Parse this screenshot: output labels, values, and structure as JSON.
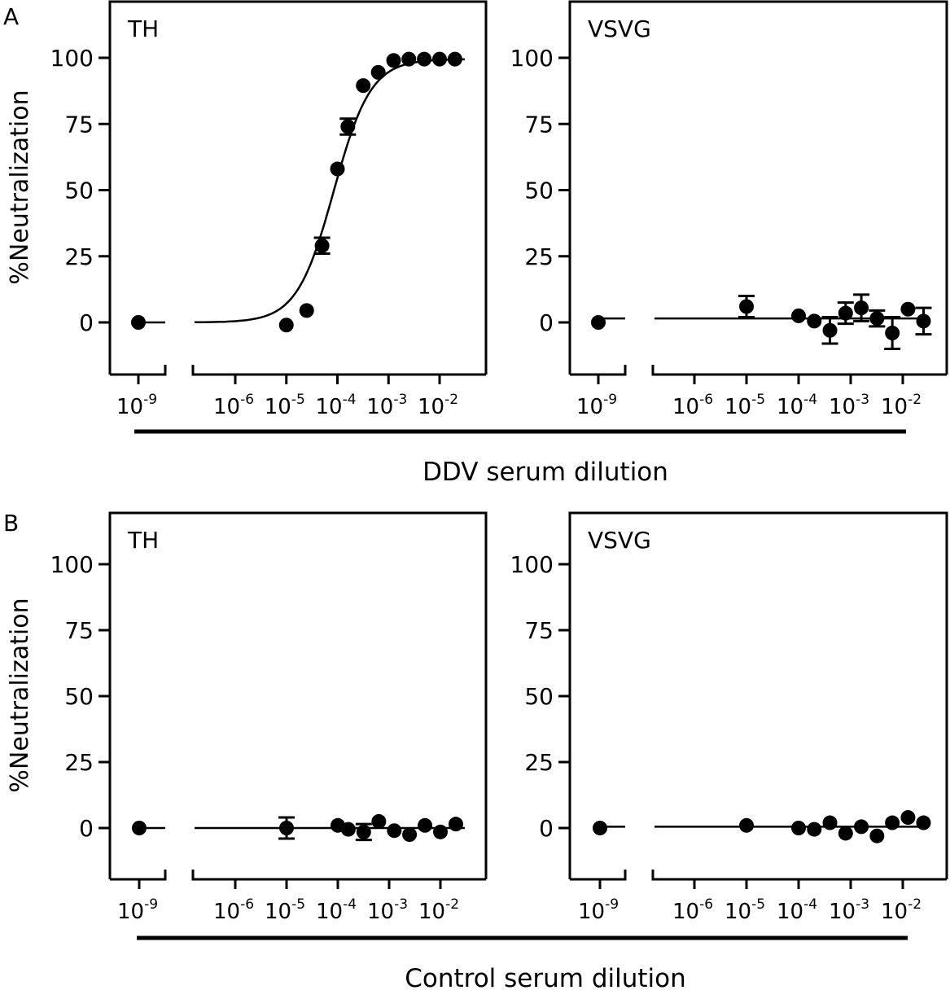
{
  "figure": {
    "section_letters": [
      "A",
      "B"
    ],
    "bottom_labels": [
      "DDV serum dilution",
      "Control serum dilution"
    ]
  },
  "chart_data": [
    {
      "type": "scatter",
      "panel": "A",
      "title": "TH",
      "ylabel": "%Neutralization",
      "xlabel": "DDV serum dilution",
      "x_scale": "log10",
      "y_ticks": [
        0,
        25,
        50,
        75,
        100
      ],
      "ylim": [
        -20,
        120
      ],
      "x_ticks": [
        {
          "base": "10",
          "exp": "-9"
        },
        {
          "base": "10",
          "exp": "-6"
        },
        {
          "base": "10",
          "exp": "-5"
        },
        {
          "base": "10",
          "exp": "-4"
        },
        {
          "base": "10",
          "exp": "-3"
        },
        {
          "base": "10",
          "exp": "-2"
        }
      ],
      "control_point": {
        "x": 1e-09,
        "y": 0,
        "err": 0
      },
      "points": [
        {
          "x": 1e-05,
          "y": -1,
          "err": 0
        },
        {
          "x": 2.5e-05,
          "y": 4.5,
          "err": 0
        },
        {
          "x": 5e-05,
          "y": 29,
          "err": 3
        },
        {
          "x": 0.0001,
          "y": 58,
          "err": 0
        },
        {
          "x": 0.00016,
          "y": 74,
          "err": 3
        },
        {
          "x": 0.00032,
          "y": 89.5,
          "err": 0
        },
        {
          "x": 0.00063,
          "y": 94.5,
          "err": 0
        },
        {
          "x": 0.00126,
          "y": 99,
          "err": 0
        },
        {
          "x": 0.0025,
          "y": 99.5,
          "err": 0
        },
        {
          "x": 0.005,
          "y": 99.5,
          "err": 0
        },
        {
          "x": 0.01,
          "y": 99.5,
          "err": 0
        },
        {
          "x": 0.02,
          "y": 99.5,
          "err": 0
        }
      ],
      "fit": {
        "type": "sigmoid",
        "bottom": 0,
        "top": 99.5,
        "ec50": 8.5e-05,
        "hill": 1.2
      }
    },
    {
      "type": "scatter",
      "panel": "A",
      "title": "VSVG",
      "ylabel": "",
      "xlabel": "DDV serum dilution",
      "x_scale": "log10",
      "y_ticks": [
        0,
        25,
        50,
        75,
        100
      ],
      "ylim": [
        -20,
        120
      ],
      "x_ticks": [
        {
          "base": "10",
          "exp": "-9"
        },
        {
          "base": "10",
          "exp": "-6"
        },
        {
          "base": "10",
          "exp": "-5"
        },
        {
          "base": "10",
          "exp": "-4"
        },
        {
          "base": "10",
          "exp": "-3"
        },
        {
          "base": "10",
          "exp": "-2"
        }
      ],
      "control_point": {
        "x": 1e-09,
        "y": 0,
        "err": 0
      },
      "points": [
        {
          "x": 1e-05,
          "y": 6,
          "err": 4
        },
        {
          "x": 0.0001,
          "y": 2.5,
          "err": 0
        },
        {
          "x": 0.0002,
          "y": 0.5,
          "err": 0
        },
        {
          "x": 0.0004,
          "y": -3,
          "err": 5
        },
        {
          "x": 0.0008,
          "y": 3.5,
          "err": 4
        },
        {
          "x": 0.0016,
          "y": 5.5,
          "err": 5
        },
        {
          "x": 0.0032,
          "y": 1.5,
          "err": 3
        },
        {
          "x": 0.0063,
          "y": -4,
          "err": 6
        },
        {
          "x": 0.0126,
          "y": 5,
          "err": 0
        },
        {
          "x": 0.025,
          "y": 0.5,
          "err": 5
        }
      ],
      "fit": {
        "type": "flat",
        "y": 1.5
      }
    },
    {
      "type": "scatter",
      "panel": "B",
      "title": "TH",
      "ylabel": "%Neutralization",
      "xlabel": "Control serum dilution",
      "x_scale": "log10",
      "y_ticks": [
        0,
        25,
        50,
        75,
        100
      ],
      "ylim": [
        -20,
        120
      ],
      "x_ticks": [
        {
          "base": "10",
          "exp": "-9"
        },
        {
          "base": "10",
          "exp": "-6"
        },
        {
          "base": "10",
          "exp": "-5"
        },
        {
          "base": "10",
          "exp": "-4"
        },
        {
          "base": "10",
          "exp": "-3"
        },
        {
          "base": "10",
          "exp": "-2"
        }
      ],
      "control_point": {
        "x": 1e-09,
        "y": 0,
        "err": 0
      },
      "points": [
        {
          "x": 1e-05,
          "y": 0,
          "err": 4
        },
        {
          "x": 0.0001,
          "y": 1,
          "err": 0
        },
        {
          "x": 0.00016,
          "y": -0.5,
          "err": 0
        },
        {
          "x": 0.00032,
          "y": -1.5,
          "err": 3
        },
        {
          "x": 0.00063,
          "y": 2.5,
          "err": 0
        },
        {
          "x": 0.00126,
          "y": -1,
          "err": 0
        },
        {
          "x": 0.0025,
          "y": -2.5,
          "err": 0
        },
        {
          "x": 0.005,
          "y": 1,
          "err": 0
        },
        {
          "x": 0.01,
          "y": -1.5,
          "err": 0
        },
        {
          "x": 0.02,
          "y": 1.5,
          "err": 0
        }
      ],
      "fit": {
        "type": "flat",
        "y": 0
      }
    },
    {
      "type": "scatter",
      "panel": "B",
      "title": "VSVG",
      "ylabel": "",
      "xlabel": "Control serum dilution",
      "x_scale": "log10",
      "y_ticks": [
        0,
        25,
        50,
        75,
        100
      ],
      "ylim": [
        -20,
        120
      ],
      "x_ticks": [
        {
          "base": "10",
          "exp": "-9"
        },
        {
          "base": "10",
          "exp": "-6"
        },
        {
          "base": "10",
          "exp": "-5"
        },
        {
          "base": "10",
          "exp": "-4"
        },
        {
          "base": "10",
          "exp": "-3"
        },
        {
          "base": "10",
          "exp": "-2"
        }
      ],
      "control_point": {
        "x": 1e-09,
        "y": 0,
        "err": 0
      },
      "points": [
        {
          "x": 1e-05,
          "y": 1,
          "err": 0
        },
        {
          "x": 0.0001,
          "y": 0,
          "err": 0
        },
        {
          "x": 0.0002,
          "y": -0.5,
          "err": 0
        },
        {
          "x": 0.0004,
          "y": 2,
          "err": 0
        },
        {
          "x": 0.0008,
          "y": -2,
          "err": 0
        },
        {
          "x": 0.0016,
          "y": 0.5,
          "err": 0
        },
        {
          "x": 0.0032,
          "y": -3,
          "err": 0
        },
        {
          "x": 0.0063,
          "y": 2,
          "err": 0
        },
        {
          "x": 0.0126,
          "y": 4,
          "err": 0
        },
        {
          "x": 0.025,
          "y": 2,
          "err": 0
        }
      ],
      "fit": {
        "type": "flat",
        "y": 0.5
      }
    }
  ]
}
